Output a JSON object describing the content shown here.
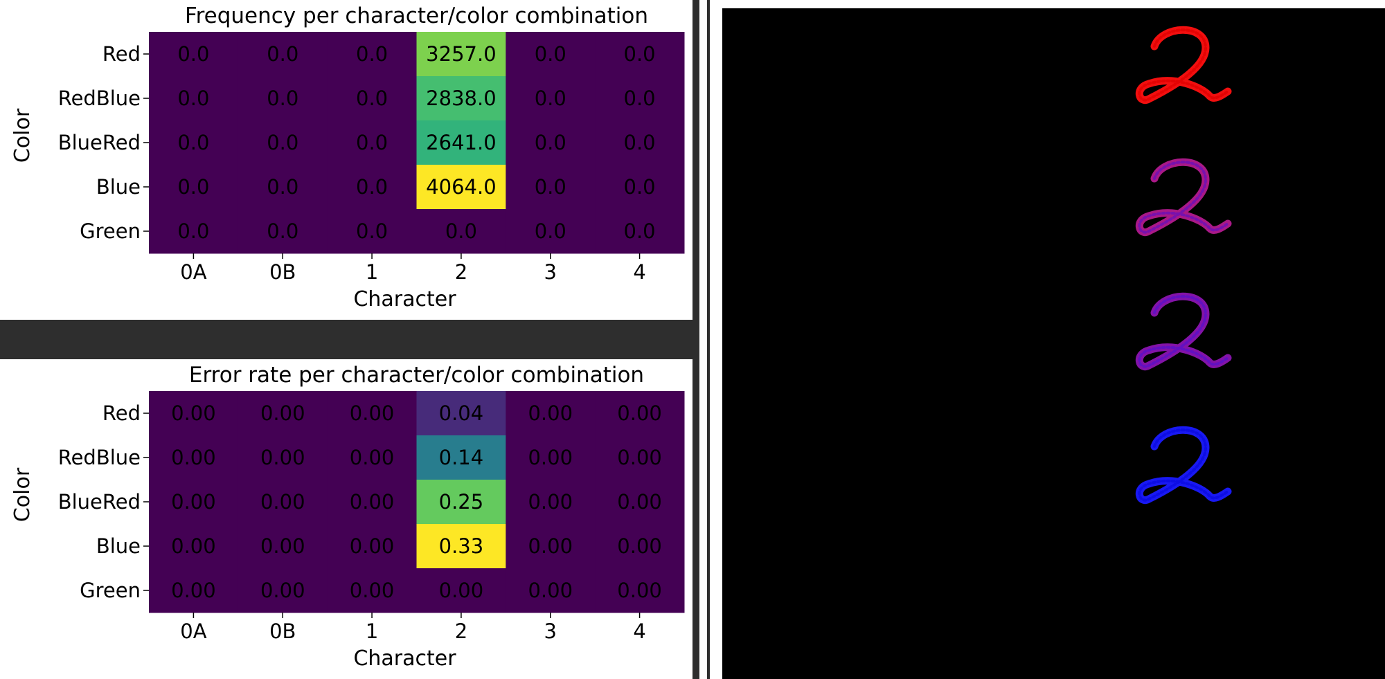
{
  "chart_data": [
    {
      "type": "heatmap",
      "title": "Frequency per character/color combination",
      "xlabel": "Character",
      "ylabel": "Color",
      "x_categories": [
        "0A",
        "0B",
        "1",
        "2",
        "3",
        "4"
      ],
      "y_categories": [
        "Red",
        "RedBlue",
        "BlueRed",
        "Blue",
        "Green"
      ],
      "values": [
        [
          0,
          0,
          0,
          3257,
          0,
          0
        ],
        [
          0,
          0,
          0,
          2838,
          0,
          0
        ],
        [
          0,
          0,
          0,
          2641,
          0,
          0
        ],
        [
          0,
          0,
          0,
          4064,
          0,
          0
        ],
        [
          0,
          0,
          0,
          0,
          0,
          0
        ]
      ],
      "cell_labels": [
        [
          "0.0",
          "0.0",
          "0.0",
          "3257.0",
          "0.0",
          "0.0"
        ],
        [
          "0.0",
          "0.0",
          "0.0",
          "2838.0",
          "0.0",
          "0.0"
        ],
        [
          "0.0",
          "0.0",
          "0.0",
          "2641.0",
          "0.0",
          "0.0"
        ],
        [
          "0.0",
          "0.0",
          "0.0",
          "4064.0",
          "0.0",
          "0.0"
        ],
        [
          "0.0",
          "0.0",
          "0.0",
          "0.0",
          "0.0",
          "0.0"
        ]
      ],
      "colormap": "viridis",
      "vmin": 0,
      "vmax": 4064
    },
    {
      "type": "heatmap",
      "title": "Error rate per character/color combination",
      "xlabel": "Character",
      "ylabel": "Color",
      "x_categories": [
        "0A",
        "0B",
        "1",
        "2",
        "3",
        "4"
      ],
      "y_categories": [
        "Red",
        "RedBlue",
        "BlueRed",
        "Blue",
        "Green"
      ],
      "values": [
        [
          0,
          0,
          0,
          0.04,
          0,
          0
        ],
        [
          0,
          0,
          0,
          0.14,
          0,
          0
        ],
        [
          0,
          0,
          0,
          0.25,
          0,
          0
        ],
        [
          0,
          0,
          0,
          0.33,
          0,
          0
        ],
        [
          0,
          0,
          0,
          0,
          0,
          0
        ]
      ],
      "cell_labels": [
        [
          "0.00",
          "0.00",
          "0.00",
          "0.04",
          "0.00",
          "0.00"
        ],
        [
          "0.00",
          "0.00",
          "0.00",
          "0.14",
          "0.00",
          "0.00"
        ],
        [
          "0.00",
          "0.00",
          "0.00",
          "0.25",
          "0.00",
          "0.00"
        ],
        [
          "0.00",
          "0.00",
          "0.00",
          "0.33",
          "0.00",
          "0.00"
        ],
        [
          "0.00",
          "0.00",
          "0.00",
          "0.00",
          "0.00",
          "0.00"
        ]
      ],
      "colormap": "viridis",
      "vmin": 0,
      "vmax": 0.33
    }
  ],
  "preview": {
    "background": "#000000",
    "glyphs": [
      {
        "character": "2",
        "color_name": "Red",
        "colors": [
          "#ff1010",
          "#e00000"
        ]
      },
      {
        "character": "2",
        "color_name": "RedBlue",
        "colors": [
          "#b21a8e",
          "#6a0fb8"
        ]
      },
      {
        "character": "2",
        "color_name": "BlueRed",
        "colors": [
          "#8a14b0",
          "#5a10c8"
        ]
      },
      {
        "character": "2",
        "color_name": "Blue",
        "colors": [
          "#1a1aff",
          "#0a0ae0"
        ]
      }
    ]
  }
}
